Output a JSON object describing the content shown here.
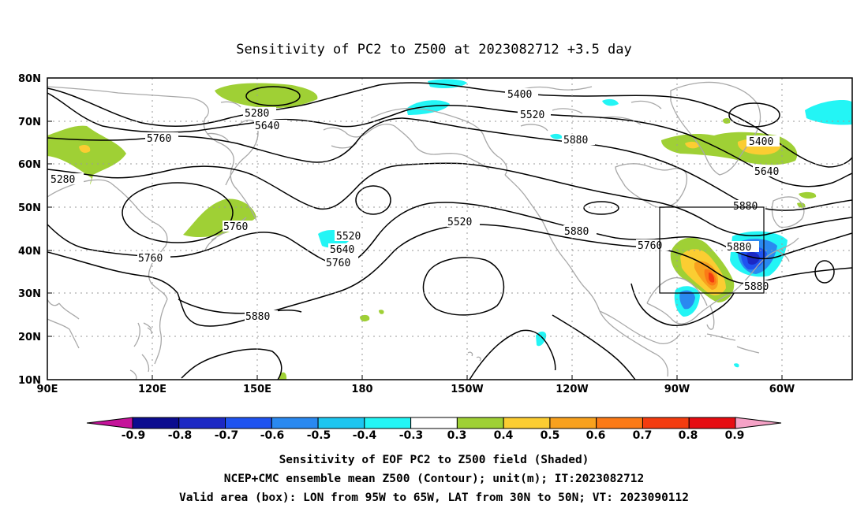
{
  "title": "Sensitivity of PC2 to Z500 at 2023082712 +3.5 day",
  "y_ticks": [
    "80N",
    "70N",
    "60N",
    "50N",
    "40N",
    "30N",
    "20N",
    "10N"
  ],
  "x_ticks": [
    "90E",
    "120E",
    "150E",
    "180",
    "150W",
    "120W",
    "90W",
    "60W"
  ],
  "contour_labels": [
    "5400",
    "5280",
    "5520",
    "5640",
    "5760",
    "5880",
    "5280",
    "5400",
    "5640",
    "5760",
    "5880",
    "5520",
    "5640",
    "5760",
    "5520",
    "5880",
    "5760",
    "5880",
    "5760",
    "5880",
    "5880"
  ],
  "colorbar": {
    "labels": [
      "-0.9",
      "-0.8",
      "-0.7",
      "-0.6",
      "-0.5",
      "-0.4",
      "-0.3",
      "0.3",
      "0.4",
      "0.5",
      "0.6",
      "0.7",
      "0.8",
      "0.9"
    ],
    "colors": [
      "#c5139a",
      "#0b0b8f",
      "#1c28c4",
      "#1f53f0",
      "#2a89f0",
      "#1dc6f0",
      "#23f5f5",
      "#ffffff",
      "#9fd035",
      "#fbcd32",
      "#f8a11e",
      "#fb7a16",
      "#f33c0f",
      "#e60d12",
      "#f5a2c6"
    ]
  },
  "captions": {
    "line1": "Sensitivity of EOF PC2 to Z500 field (Shaded)",
    "line2": "NCEP+CMC ensemble mean Z500 (Contour); unit(m); IT:2023082712",
    "line3": "Valid area (box): LON from 95W to 65W, LAT from 30N to 50N; VT: 2023090112"
  },
  "valid_area": {
    "lon_min": "95W",
    "lon_max": "65W",
    "lat_min": "30N",
    "lat_max": "50N"
  },
  "colors": {
    "coastline": "#a8a8a8",
    "contour": "#000000"
  }
}
